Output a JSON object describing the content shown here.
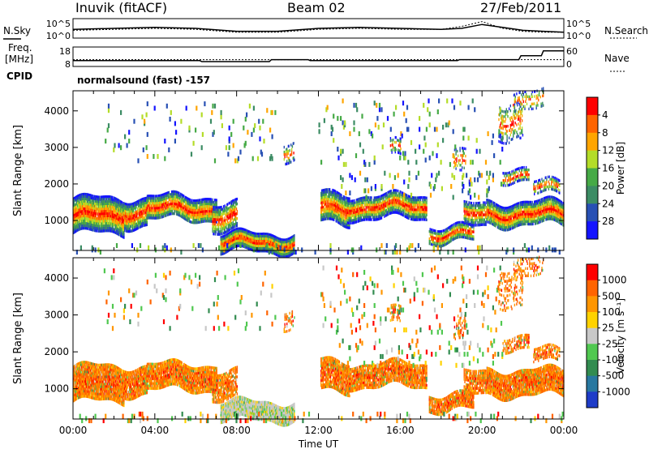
{
  "header": {
    "station": "Inuvik (fitACF)",
    "beam": "Beam 02",
    "date": "27/Feb/2011",
    "nsky_label": "N.Sky",
    "nsearch_label": "N.Search",
    "freq_label": "Freq.",
    "freq_unit": "[MHz]",
    "nave_label": "Nave",
    "cpid_label": "CPID",
    "cpid_value": "normalsound (fast) -157"
  },
  "chart_data": [
    {
      "type": "line",
      "title": "",
      "ylabel": "N.Sky / N.Search",
      "yticks_left": [
        "10^5",
        "10^0"
      ],
      "yticks_right": [
        "10^5",
        "10^0"
      ],
      "series": [
        {
          "name": "N.Sky",
          "x": [
            0,
            2,
            4,
            6,
            8,
            10,
            12,
            14,
            16,
            18,
            19,
            20,
            21,
            22,
            23,
            24
          ],
          "values": [
            0.45,
            0.5,
            0.55,
            0.5,
            0.35,
            0.35,
            0.5,
            0.55,
            0.5,
            0.45,
            0.5,
            0.7,
            0.55,
            0.4,
            0.35,
            0.3
          ]
        },
        {
          "name": "N.Search",
          "x": [
            0,
            2,
            4,
            6,
            8,
            10,
            12,
            14,
            16,
            18,
            19,
            20,
            21,
            22,
            23,
            24
          ],
          "values": [
            0.4,
            0.45,
            0.5,
            0.45,
            0.3,
            0.3,
            0.45,
            0.5,
            0.45,
            0.45,
            0.6,
            0.85,
            0.5,
            0.35,
            0.3,
            0.3
          ]
        }
      ]
    },
    {
      "type": "line",
      "title": "",
      "ylabel": "Freq. [MHz]",
      "yticks_left": [
        "18",
        "8"
      ],
      "yticks_right": [
        "60",
        "0"
      ],
      "series": [
        {
          "name": "Freq.",
          "x": [
            0,
            6.2,
            6.3,
            9.6,
            9.7,
            11.5,
            11.6,
            17.8,
            17.9,
            18.8,
            18.9,
            21.8,
            21.9,
            22.9,
            23.0,
            24
          ],
          "values": [
            11,
            11,
            10.5,
            10.5,
            11.5,
            11.5,
            11,
            11,
            11,
            11,
            11.5,
            11.5,
            13.5,
            13.5,
            16,
            16
          ]
        },
        {
          "name": "Nave",
          "x": [
            0,
            24
          ],
          "values": [
            21,
            21
          ]
        }
      ]
    },
    {
      "type": "heatmap",
      "title": "",
      "ylabel": "Slant Range [km]",
      "yticks": [
        1000,
        2000,
        3000,
        4000
      ],
      "ylim": [
        180,
        4550
      ],
      "xlim": [
        0,
        24
      ],
      "colorbar_label": "Power [dB]",
      "colorbar_ticks": [
        "4",
        "8",
        "12",
        "16",
        "20",
        "24",
        "28"
      ],
      "colorbar_colors": [
        "#1414ff",
        "#2850b4",
        "#3c8c64",
        "#46aa46",
        "#b4dc28",
        "#ffa500",
        "#ff6400",
        "#ff0000"
      ]
    },
    {
      "type": "heatmap",
      "title": "",
      "ylabel": "Slant Range [km]",
      "xlabel": "Time UT",
      "yticks": [
        1000,
        2000,
        3000,
        4000
      ],
      "ylim": [
        180,
        4550
      ],
      "xlim": [
        0,
        24
      ],
      "xticks": [
        "00:00",
        "04:00",
        "08:00",
        "12:00",
        "16:00",
        "20:00",
        "00:00"
      ],
      "colorbar_label": "Velocity [m s⁻¹]",
      "colorbar_ticks": [
        "1000",
        "500",
        "100",
        "25",
        "-25",
        "-100",
        "-500",
        "-1000"
      ],
      "colorbar_colors": [
        "#1e3cc8",
        "#2878a0",
        "#328c50",
        "#50c850",
        "#c8c8c8",
        "#ffd200",
        "#ff9600",
        "#ff6400",
        "#ff0000"
      ]
    }
  ]
}
